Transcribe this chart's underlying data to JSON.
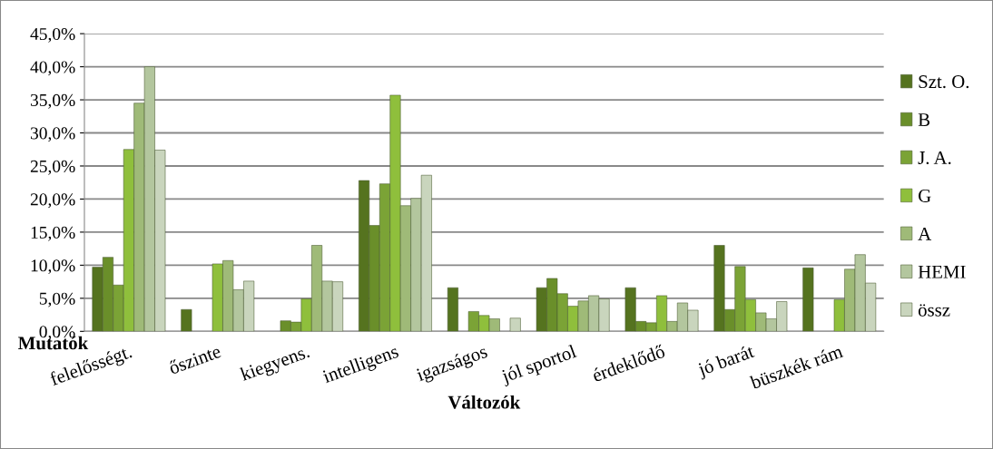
{
  "chart_data": {
    "type": "bar",
    "xlabel": "Változók",
    "ylabel": "Mutatók",
    "categories": [
      "felelősségt.",
      "őszinte",
      "kiegyens.",
      "intelligens",
      "igazságos",
      "jól sportol",
      "érdeklődő",
      "jó barát",
      "büszkék rám"
    ],
    "series": [
      {
        "name": "Szt. O.",
        "color": "#55731f",
        "values": [
          9.7,
          3.3,
          null,
          22.8,
          6.6,
          6.6,
          6.6,
          13.0,
          9.6
        ]
      },
      {
        "name": "B",
        "color": "#6a8f2a",
        "values": [
          11.2,
          null,
          1.6,
          16.0,
          null,
          8.0,
          1.5,
          3.3,
          null
        ]
      },
      {
        "name": "J. A.",
        "color": "#7ba336",
        "values": [
          7.0,
          null,
          1.4,
          22.3,
          3.0,
          5.7,
          1.3,
          9.8,
          null
        ]
      },
      {
        "name": "G",
        "color": "#8fbf3c",
        "values": [
          27.5,
          10.2,
          4.9,
          35.7,
          2.4,
          3.8,
          5.4,
          4.8,
          4.8
        ]
      },
      {
        "name": "A",
        "color": "#9fba78",
        "values": [
          34.5,
          10.7,
          13.0,
          19.0,
          1.9,
          4.6,
          1.5,
          2.8,
          9.4
        ]
      },
      {
        "name": "HEMI",
        "color": "#b3c69e",
        "values": [
          40.0,
          6.3,
          7.6,
          20.1,
          null,
          5.4,
          4.3,
          1.9,
          11.6
        ]
      },
      {
        "name": "össz",
        "color": "#c9d5bd",
        "values": [
          27.4,
          7.6,
          7.5,
          23.6,
          2.0,
          4.9,
          3.2,
          4.5,
          7.3
        ]
      }
    ],
    "ylim": [
      0,
      45
    ],
    "yticks": [
      {
        "value": 0,
        "label": "0,0%"
      },
      {
        "value": 5,
        "label": "5,0%"
      },
      {
        "value": 10,
        "label": "10,0%"
      },
      {
        "value": 15,
        "label": "15,0%"
      },
      {
        "value": 20,
        "label": "20,0%"
      },
      {
        "value": 25,
        "label": "25,0%"
      },
      {
        "value": 30,
        "label": "30,0%"
      },
      {
        "value": 35,
        "label": "35,0%"
      },
      {
        "value": 40,
        "label": "40,0%"
      },
      {
        "value": 45,
        "label": "45,0%"
      }
    ],
    "grid": "y",
    "legend": "right"
  }
}
